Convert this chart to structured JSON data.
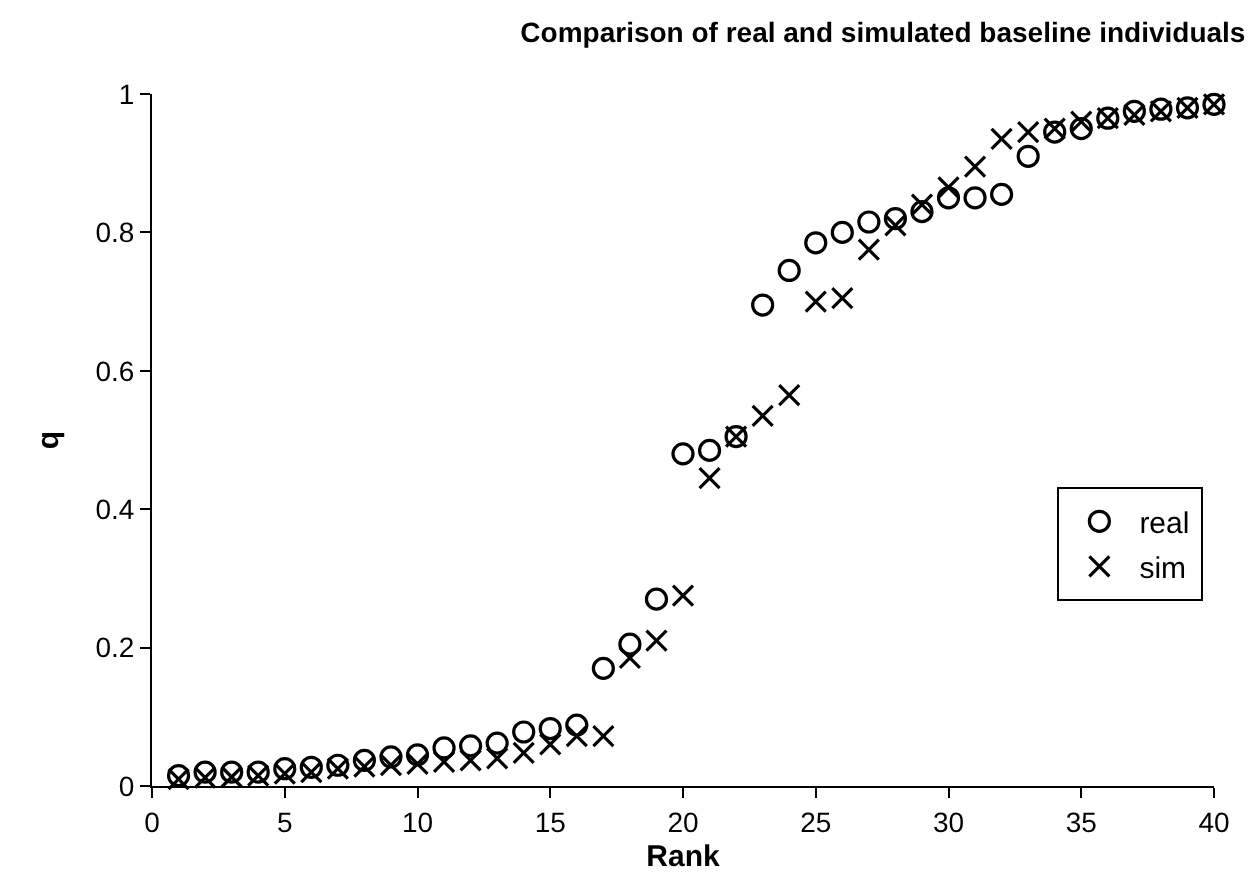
{
  "chart_data": {
    "type": "scatter",
    "title": "Comparison of real and simulated baseline individuals",
    "xlabel": "Rank",
    "ylabel": "q",
    "x": [
      1,
      2,
      3,
      4,
      5,
      6,
      7,
      8,
      9,
      10,
      11,
      12,
      13,
      14,
      15,
      16,
      17,
      18,
      19,
      20,
      21,
      22,
      23,
      24,
      25,
      26,
      27,
      28,
      29,
      30,
      31,
      32,
      33,
      34,
      35,
      36,
      37,
      38,
      39,
      40
    ],
    "series": [
      {
        "name": "real",
        "color": "#000000",
        "marker": "circle",
        "values": [
          0.015,
          0.02,
          0.02,
          0.02,
          0.025,
          0.027,
          0.03,
          0.037,
          0.042,
          0.045,
          0.055,
          0.058,
          0.062,
          0.078,
          0.083,
          0.088,
          0.17,
          0.205,
          0.27,
          0.48,
          0.485,
          0.505,
          0.695,
          0.745,
          0.785,
          0.8,
          0.815,
          0.82,
          0.83,
          0.85,
          0.85,
          0.855,
          0.91,
          0.945,
          0.95,
          0.965,
          0.975,
          0.978,
          0.98,
          0.985
        ]
      },
      {
        "name": "sim",
        "color": "#000000",
        "marker": "cross",
        "values": [
          0.01,
          0.012,
          0.013,
          0.015,
          0.018,
          0.02,
          0.025,
          0.028,
          0.03,
          0.032,
          0.035,
          0.037,
          0.04,
          0.048,
          0.06,
          0.072,
          0.072,
          0.185,
          0.21,
          0.275,
          0.445,
          0.505,
          0.535,
          0.565,
          0.7,
          0.705,
          0.775,
          0.81,
          0.84,
          0.865,
          0.895,
          0.935,
          0.945,
          0.95,
          0.96,
          0.965,
          0.97,
          0.975,
          0.98,
          0.985
        ]
      }
    ],
    "xlim": [
      0,
      40
    ],
    "xticks": [
      0,
      5,
      10,
      15,
      20,
      25,
      30,
      35,
      40
    ],
    "ylim": [
      0,
      1
    ],
    "yticks": [
      0,
      0.2,
      0.4,
      0.6,
      0.8,
      1
    ],
    "grid": false,
    "legend": "right"
  }
}
